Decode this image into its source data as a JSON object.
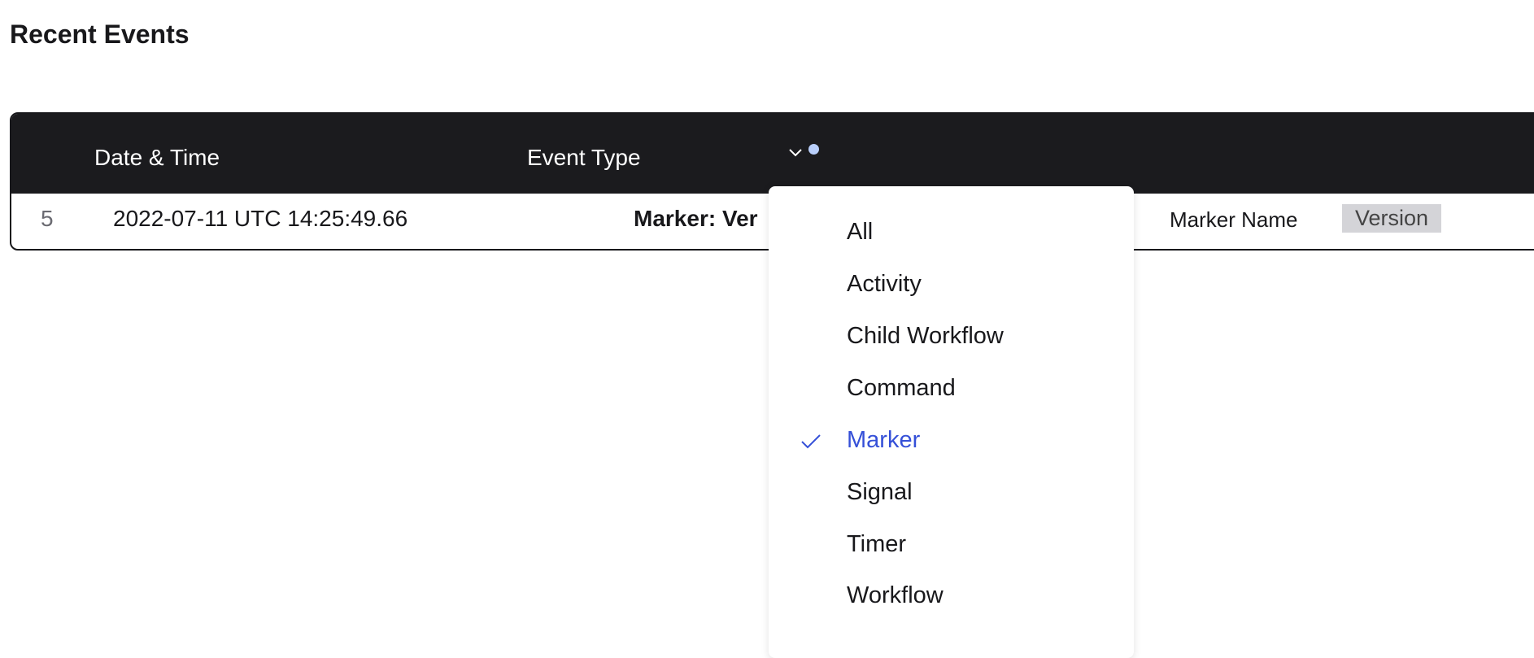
{
  "title": "Recent Events",
  "table": {
    "headers": {
      "date": "Date & Time",
      "event_type": "Event Type"
    },
    "filter_active_color": "#b9cffb",
    "rows": [
      {
        "id": "5",
        "date": "2022-07-11 UTC 14:25:49.66",
        "event_type": "Marker: Ver",
        "detail_label": "Marker Name",
        "detail_value": "Version"
      }
    ]
  },
  "dropdown": {
    "options": [
      "All",
      "Activity",
      "Child Workflow",
      "Command",
      "Marker",
      "Signal",
      "Timer",
      "Workflow"
    ],
    "selected": "Marker",
    "accent": "#3550d8"
  }
}
